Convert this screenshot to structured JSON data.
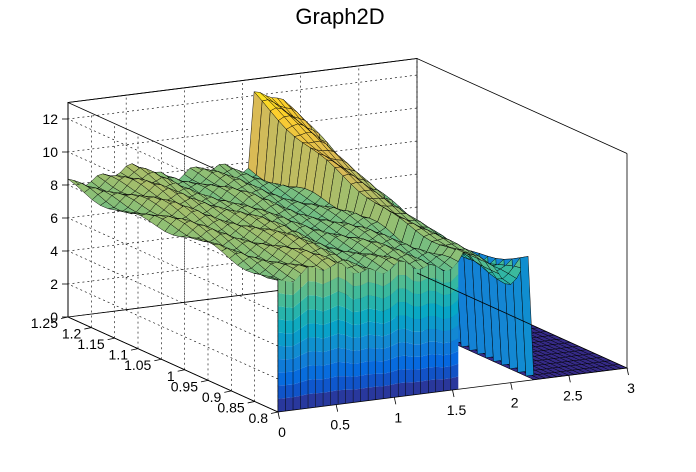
{
  "chart_data": {
    "type": "surface",
    "title": "Graph2D",
    "xlabel": "",
    "ylabel": "",
    "zlabel": "",
    "x_ticks": [
      "0",
      "0.5",
      "1",
      "1.5",
      "2",
      "2.5",
      "3"
    ],
    "y_ticks": [
      "0.8",
      "0.85",
      "0.9",
      "0.95",
      "1",
      "1.05",
      "1.1",
      "1.15",
      "1.2",
      "1.25"
    ],
    "z_ticks": [
      "0",
      "2",
      "4",
      "6",
      "8",
      "10",
      "12"
    ],
    "xlim": [
      0,
      3
    ],
    "ylim": [
      0.8,
      1.25
    ],
    "zlim": [
      0,
      13
    ],
    "grid": true,
    "palette": [
      "#352a87",
      "#0363e1",
      "#1485d4",
      "#06a7c6",
      "#38b99e",
      "#92bf73",
      "#d9ba56",
      "#fcce2e",
      "#f9fb0e"
    ],
    "regions": [
      {
        "name": "x 0–1.55",
        "z_level": 8,
        "note": "surface near z 7.5–8.5, vertical wall down to 0 at x = 1.55"
      },
      {
        "name": "x 1.55–2.15",
        "z_level": 12.2,
        "note": "ridge peaking about 12.2 at x ≈ 1.6, y = 1.25"
      },
      {
        "name": "x 2.15–3",
        "z_level": 0,
        "note": "flat floor at z = 0"
      }
    ]
  }
}
